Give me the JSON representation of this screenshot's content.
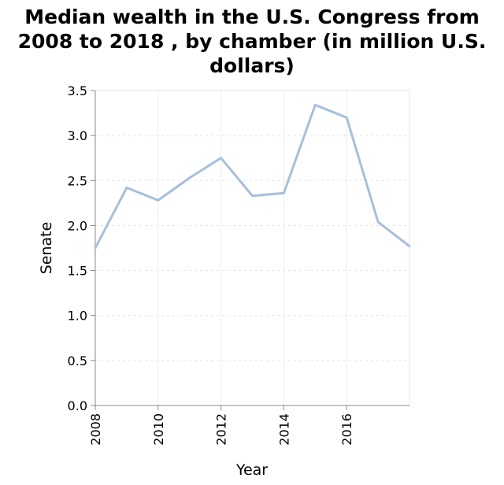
{
  "chart_data": {
    "type": "line",
    "title_lines": [
      "Median wealth in the U.S. Congress from",
      "2008 to 2018 , by chamber (in million U.S.",
      "dollars)"
    ],
    "xlabel": "Year",
    "ylabel": "Senate",
    "x_ticks": [
      "2008",
      "2010",
      "2012",
      "2014",
      "2016"
    ],
    "y_ticks": [
      "0.0",
      "0.5",
      "1.0",
      "1.5",
      "2.0",
      "2.5",
      "3.0",
      "3.5"
    ],
    "xlim": [
      2008,
      2018
    ],
    "ylim": [
      0,
      3.5
    ],
    "grid": true,
    "line_color": "#a7bfdc",
    "series": [
      {
        "x": [
          2008,
          2009,
          2010,
          2011,
          2012,
          2013,
          2014,
          2015,
          2016,
          2017,
          2018
        ],
        "values": [
          1.75,
          2.42,
          2.28,
          2.53,
          2.75,
          2.33,
          2.36,
          3.34,
          3.2,
          2.04,
          1.77
        ]
      }
    ]
  }
}
